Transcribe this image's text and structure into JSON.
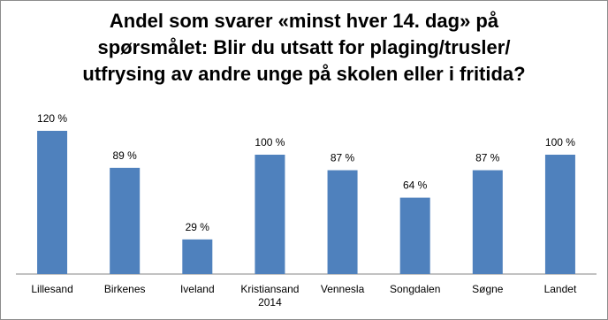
{
  "chart_data": {
    "type": "bar",
    "title": "Andel som svarer «minst hver 14. dag» på\nspørsmålet: Blir du utsatt for plaging/trusler/\nutfrysing av andre unge på skolen eller i fritida?",
    "categories": [
      "Lillesand",
      "Birkenes",
      "Iveland",
      "Kristiansand 2014",
      "Vennesla",
      "Songdalen",
      "Søgne",
      "Landet"
    ],
    "values": [
      120,
      89,
      29,
      100,
      87,
      64,
      87,
      100
    ],
    "value_labels": [
      "120 %",
      "89 %",
      "29 %",
      "100 %",
      "87 %",
      "64 %",
      "87 %",
      "100 %"
    ],
    "color": "#4f81bd"
  }
}
